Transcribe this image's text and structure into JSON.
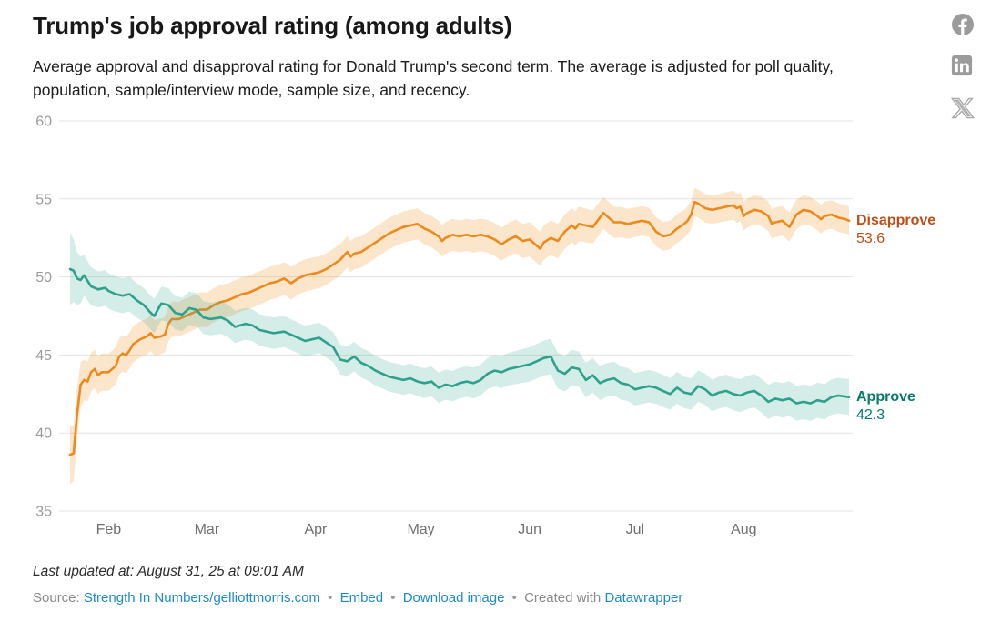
{
  "header": {
    "title": "Trump's job approval rating (among adults)",
    "description": "Average approval and disapproval rating for Donald Trump's second term. The average is adjusted for poll quality, population, sample/interview mode, sample size, and recency."
  },
  "share": {
    "facebook": "facebook-share",
    "linkedin": "linkedin-share",
    "x": "x-share"
  },
  "footer": {
    "last_updated": "Last updated at: August 31, 25 at 09:01 AM",
    "source_label": "Source:",
    "source_link": "Strength In Numbers/gelliottmorris.com",
    "separator": "•",
    "embed_label": "Embed",
    "download_label": "Download image",
    "created_with_label": "Created with",
    "datawrapper_label": "Datawrapper"
  },
  "chart_data": {
    "type": "line",
    "title": "Trump's job approval rating (among adults)",
    "xlabel": "",
    "ylabel": "",
    "grid": true,
    "legend_position": "right-end-labels",
    "x_axis": {
      "domain_days": [
        0,
        222
      ],
      "start_date": "Jan 21",
      "end_date": "Aug 31",
      "months": [
        {
          "label": "Feb",
          "day": 11
        },
        {
          "label": "Mar",
          "day": 39
        },
        {
          "label": "Apr",
          "day": 70
        },
        {
          "label": "May",
          "day": 100
        },
        {
          "label": "Jun",
          "day": 131
        },
        {
          "label": "Jul",
          "day": 161
        },
        {
          "label": "Aug",
          "day": 192
        }
      ]
    },
    "y_axis": {
      "min": 35,
      "max": 60,
      "ticks": [
        60,
        55,
        50,
        45,
        40,
        35
      ]
    },
    "colors": {
      "grid": "#e3e3e3",
      "y_tick_text": "#9c9c9c",
      "x_tick_text": "#6f6f6f"
    },
    "series": [
      {
        "name": "Disapprove",
        "last_value": 53.6,
        "last_value_label": "53.6",
        "color": "#ec8a1c",
        "band_color": "rgba(238,156,48,0.25)",
        "label_color": "#bc4f16",
        "points": [
          [
            0,
            38.6
          ],
          [
            1,
            38.7
          ],
          [
            2,
            41.2
          ],
          [
            3,
            43.1
          ],
          [
            4,
            43.4
          ],
          [
            5,
            43.3
          ],
          [
            6,
            43.9
          ],
          [
            7,
            44.1
          ],
          [
            8,
            43.7
          ],
          [
            9,
            43.9
          ],
          [
            11,
            43.9
          ],
          [
            13,
            44.3
          ],
          [
            14,
            44.9
          ],
          [
            15,
            45.1
          ],
          [
            16,
            45.0
          ],
          [
            17,
            45.3
          ],
          [
            18,
            45.7
          ],
          [
            20,
            46.0
          ],
          [
            22,
            46.2
          ],
          [
            23,
            46.4
          ],
          [
            24,
            46.1
          ],
          [
            26,
            46.2
          ],
          [
            27,
            46.3
          ],
          [
            28,
            47.0
          ],
          [
            29,
            47.3
          ],
          [
            31,
            47.3
          ],
          [
            33,
            47.5
          ],
          [
            35,
            47.7
          ],
          [
            37,
            47.9
          ],
          [
            39,
            47.9
          ],
          [
            41,
            48.2
          ],
          [
            43,
            48.4
          ],
          [
            45,
            48.5
          ],
          [
            47,
            48.7
          ],
          [
            49,
            48.9
          ],
          [
            51,
            49.0
          ],
          [
            53,
            49.2
          ],
          [
            55,
            49.4
          ],
          [
            57,
            49.6
          ],
          [
            59,
            49.7
          ],
          [
            61,
            49.9
          ],
          [
            63,
            49.6
          ],
          [
            65,
            49.9
          ],
          [
            67,
            50.1
          ],
          [
            69,
            50.2
          ],
          [
            71,
            50.3
          ],
          [
            73,
            50.5
          ],
          [
            75,
            50.8
          ],
          [
            77,
            51.1
          ],
          [
            79,
            51.6
          ],
          [
            80,
            51.3
          ],
          [
            81,
            51.5
          ],
          [
            83,
            51.6
          ],
          [
            85,
            51.9
          ],
          [
            87,
            52.2
          ],
          [
            89,
            52.5
          ],
          [
            91,
            52.8
          ],
          [
            93,
            53.0
          ],
          [
            95,
            53.2
          ],
          [
            97,
            53.3
          ],
          [
            99,
            53.4
          ],
          [
            101,
            53.1
          ],
          [
            103,
            52.9
          ],
          [
            105,
            52.6
          ],
          [
            106,
            52.3
          ],
          [
            107,
            52.5
          ],
          [
            109,
            52.7
          ],
          [
            111,
            52.6
          ],
          [
            113,
            52.7
          ],
          [
            115,
            52.6
          ],
          [
            117,
            52.7
          ],
          [
            119,
            52.6
          ],
          [
            121,
            52.4
          ],
          [
            123,
            52.1
          ],
          [
            125,
            52.4
          ],
          [
            127,
            52.6
          ],
          [
            129,
            52.3
          ],
          [
            131,
            52.4
          ],
          [
            133,
            52.0
          ],
          [
            134,
            51.8
          ],
          [
            135,
            52.2
          ],
          [
            137,
            52.5
          ],
          [
            139,
            52.3
          ],
          [
            141,
            52.9
          ],
          [
            143,
            53.3
          ],
          [
            144,
            53.1
          ],
          [
            145,
            53.4
          ],
          [
            147,
            53.3
          ],
          [
            149,
            53.2
          ],
          [
            151,
            53.8
          ],
          [
            152,
            54.1
          ],
          [
            153,
            53.9
          ],
          [
            155,
            53.5
          ],
          [
            157,
            53.5
          ],
          [
            159,
            53.4
          ],
          [
            161,
            53.5
          ],
          [
            163,
            53.6
          ],
          [
            165,
            53.5
          ],
          [
            166,
            53.2
          ],
          [
            167,
            52.9
          ],
          [
            169,
            52.6
          ],
          [
            171,
            52.7
          ],
          [
            173,
            53.1
          ],
          [
            175,
            53.4
          ],
          [
            176,
            53.6
          ],
          [
            177,
            54.0
          ],
          [
            178,
            54.8
          ],
          [
            179,
            54.7
          ],
          [
            181,
            54.4
          ],
          [
            183,
            54.3
          ],
          [
            185,
            54.4
          ],
          [
            187,
            54.5
          ],
          [
            189,
            54.6
          ],
          [
            190,
            54.4
          ],
          [
            191,
            54.5
          ],
          [
            192,
            53.9
          ],
          [
            193,
            54.1
          ],
          [
            195,
            54.3
          ],
          [
            197,
            54.2
          ],
          [
            199,
            53.9
          ],
          [
            200,
            53.4
          ],
          [
            201,
            53.5
          ],
          [
            203,
            53.6
          ],
          [
            205,
            53.2
          ],
          [
            207,
            54.0
          ],
          [
            209,
            54.3
          ],
          [
            211,
            54.2
          ],
          [
            213,
            53.9
          ],
          [
            214,
            53.7
          ],
          [
            215,
            53.9
          ],
          [
            217,
            54.0
          ],
          [
            219,
            53.8
          ],
          [
            221,
            53.7
          ],
          [
            222,
            53.6
          ]
        ],
        "band_halfwidth_keyframes": [
          [
            0,
            1.9
          ],
          [
            2,
            1.6
          ],
          [
            4,
            1.3
          ],
          [
            8,
            1.2
          ],
          [
            20,
            1.15
          ],
          [
            40,
            1.1
          ],
          [
            60,
            1.05
          ],
          [
            80,
            1.0
          ],
          [
            100,
            1.0
          ],
          [
            120,
            1.05
          ],
          [
            131,
            1.1
          ],
          [
            145,
            1.1
          ],
          [
            160,
            0.95
          ],
          [
            178,
            0.9
          ],
          [
            200,
            0.95
          ],
          [
            222,
            0.9
          ]
        ]
      },
      {
        "name": "Approve",
        "last_value": 42.3,
        "last_value_label": "42.3",
        "color": "#2ea18b",
        "band_color": "rgba(62,172,150,0.22)",
        "label_color": "#067a6b",
        "points": [
          [
            0,
            50.5
          ],
          [
            1,
            50.4
          ],
          [
            2,
            49.9
          ],
          [
            3,
            49.8
          ],
          [
            4,
            50.1
          ],
          [
            6,
            49.4
          ],
          [
            8,
            49.2
          ],
          [
            10,
            49.3
          ],
          [
            11,
            49.1
          ],
          [
            13,
            48.9
          ],
          [
            15,
            48.8
          ],
          [
            17,
            48.9
          ],
          [
            19,
            48.5
          ],
          [
            21,
            48.2
          ],
          [
            23,
            47.7
          ],
          [
            24,
            47.5
          ],
          [
            26,
            48.3
          ],
          [
            28,
            48.2
          ],
          [
            30,
            47.7
          ],
          [
            32,
            47.6
          ],
          [
            34,
            48.0
          ],
          [
            36,
            47.9
          ],
          [
            38,
            47.4
          ],
          [
            40,
            47.3
          ],
          [
            43,
            47.4
          ],
          [
            45,
            47.2
          ],
          [
            47,
            46.8
          ],
          [
            50,
            47.0
          ],
          [
            52,
            46.9
          ],
          [
            54,
            46.6
          ],
          [
            56,
            46.5
          ],
          [
            58,
            46.4
          ],
          [
            61,
            46.5
          ],
          [
            63,
            46.3
          ],
          [
            65,
            46.1
          ],
          [
            67,
            45.9
          ],
          [
            69,
            46.0
          ],
          [
            71,
            46.1
          ],
          [
            73,
            45.8
          ],
          [
            75,
            45.5
          ],
          [
            77,
            44.7
          ],
          [
            79,
            44.6
          ],
          [
            81,
            44.9
          ],
          [
            83,
            44.5
          ],
          [
            85,
            44.3
          ],
          [
            87,
            44.0
          ],
          [
            89,
            43.8
          ],
          [
            91,
            43.6
          ],
          [
            93,
            43.5
          ],
          [
            95,
            43.4
          ],
          [
            97,
            43.5
          ],
          [
            99,
            43.3
          ],
          [
            101,
            43.2
          ],
          [
            103,
            43.3
          ],
          [
            105,
            42.9
          ],
          [
            107,
            43.1
          ],
          [
            109,
            43.0
          ],
          [
            111,
            43.2
          ],
          [
            113,
            43.3
          ],
          [
            115,
            43.2
          ],
          [
            117,
            43.4
          ],
          [
            119,
            43.8
          ],
          [
            121,
            44.0
          ],
          [
            123,
            43.9
          ],
          [
            125,
            44.1
          ],
          [
            127,
            44.2
          ],
          [
            129,
            44.3
          ],
          [
            131,
            44.4
          ],
          [
            133,
            44.6
          ],
          [
            135,
            44.8
          ],
          [
            137,
            44.9
          ],
          [
            139,
            44.0
          ],
          [
            141,
            43.8
          ],
          [
            143,
            44.2
          ],
          [
            145,
            44.1
          ],
          [
            147,
            43.4
          ],
          [
            149,
            43.7
          ],
          [
            151,
            43.2
          ],
          [
            153,
            43.4
          ],
          [
            155,
            43.5
          ],
          [
            157,
            43.2
          ],
          [
            159,
            43.1
          ],
          [
            161,
            42.8
          ],
          [
            163,
            42.9
          ],
          [
            165,
            43.0
          ],
          [
            167,
            42.9
          ],
          [
            169,
            42.7
          ],
          [
            171,
            42.5
          ],
          [
            173,
            42.9
          ],
          [
            175,
            42.6
          ],
          [
            177,
            42.5
          ],
          [
            179,
            43.0
          ],
          [
            181,
            42.8
          ],
          [
            183,
            42.4
          ],
          [
            185,
            42.6
          ],
          [
            187,
            42.7
          ],
          [
            189,
            42.5
          ],
          [
            191,
            42.4
          ],
          [
            193,
            42.6
          ],
          [
            195,
            42.7
          ],
          [
            197,
            42.4
          ],
          [
            199,
            42.0
          ],
          [
            201,
            42.2
          ],
          [
            203,
            42.1
          ],
          [
            205,
            42.2
          ],
          [
            207,
            41.9
          ],
          [
            209,
            42.0
          ],
          [
            211,
            41.9
          ],
          [
            213,
            42.1
          ],
          [
            215,
            42.0
          ],
          [
            217,
            42.3
          ],
          [
            219,
            42.4
          ],
          [
            222,
            42.3
          ]
        ],
        "band_halfwidth_keyframes": [
          [
            0,
            2.3
          ],
          [
            2,
            1.7
          ],
          [
            4,
            1.3
          ],
          [
            8,
            1.15
          ],
          [
            20,
            1.1
          ],
          [
            40,
            1.05
          ],
          [
            60,
            1.0
          ],
          [
            80,
            0.95
          ],
          [
            100,
            0.95
          ],
          [
            120,
            1.0
          ],
          [
            131,
            1.1
          ],
          [
            140,
            1.15
          ],
          [
            160,
            1.05
          ],
          [
            180,
            1.0
          ],
          [
            200,
            1.1
          ],
          [
            222,
            1.15
          ]
        ]
      }
    ]
  }
}
